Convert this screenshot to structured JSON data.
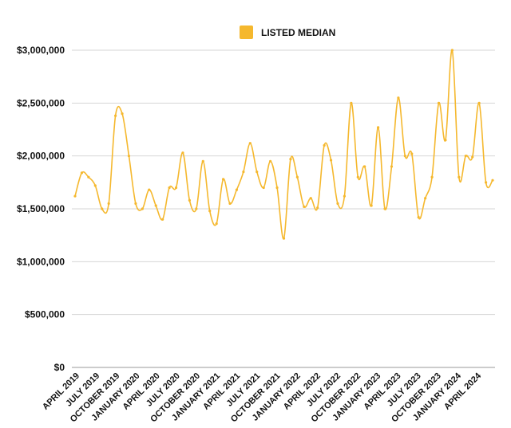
{
  "chart_data": {
    "type": "line",
    "series": [
      {
        "name": "LISTED MEDIAN",
        "color": "#F5B82E",
        "values": [
          1620000,
          1840000,
          1800000,
          1720000,
          1500000,
          1550000,
          2380000,
          2400000,
          2000000,
          1550000,
          1500000,
          1680000,
          1530000,
          1400000,
          1700000,
          1700000,
          2030000,
          1580000,
          1500000,
          1950000,
          1480000,
          1360000,
          1780000,
          1550000,
          1680000,
          1850000,
          2120000,
          1850000,
          1700000,
          1950000,
          1700000,
          1220000,
          1970000,
          1800000,
          1520000,
          1600000,
          1510000,
          2100000,
          1960000,
          1550000,
          1620000,
          2500000,
          1800000,
          1900000,
          1530000,
          2270000,
          1500000,
          1900000,
          2550000,
          2000000,
          2020000,
          1420000,
          1600000,
          1800000,
          2500000,
          2150000,
          3000000,
          1800000,
          2000000,
          1990000,
          2500000,
          1750000,
          1770000
        ]
      }
    ],
    "x_tick_labels": [
      "APRIL 2019",
      "JULY 2019",
      "OCTOBER 2019",
      "JANUARY 2020",
      "APRIL 2020",
      "JULY 2020",
      "OCTOBER 2020",
      "JANUARY 2021",
      "APRIL 2021",
      "JULY 2021",
      "OCTOBER 2021",
      "JANUARY 2022",
      "APRIL 2022",
      "JULY 2022",
      "OCTOBER 2022",
      "JANUARY 2023",
      "APRIL 2023",
      "JULY 2023",
      "OCTOBER 2023",
      "JANUARY 2024",
      "APRIL 2024"
    ],
    "y_tick_values": [
      0,
      500000,
      1000000,
      1500000,
      2000000,
      2500000,
      3000000
    ],
    "y_tick_labels": [
      "$0",
      "$500,000",
      "$1,000,000",
      "$1,500,000",
      "$2,000,000",
      "$2,500,000",
      "$3,000,000"
    ],
    "ylim": [
      0,
      3000000
    ],
    "grid": true,
    "legend_position": "top-center",
    "title": "",
    "xlabel": "",
    "ylabel": ""
  }
}
